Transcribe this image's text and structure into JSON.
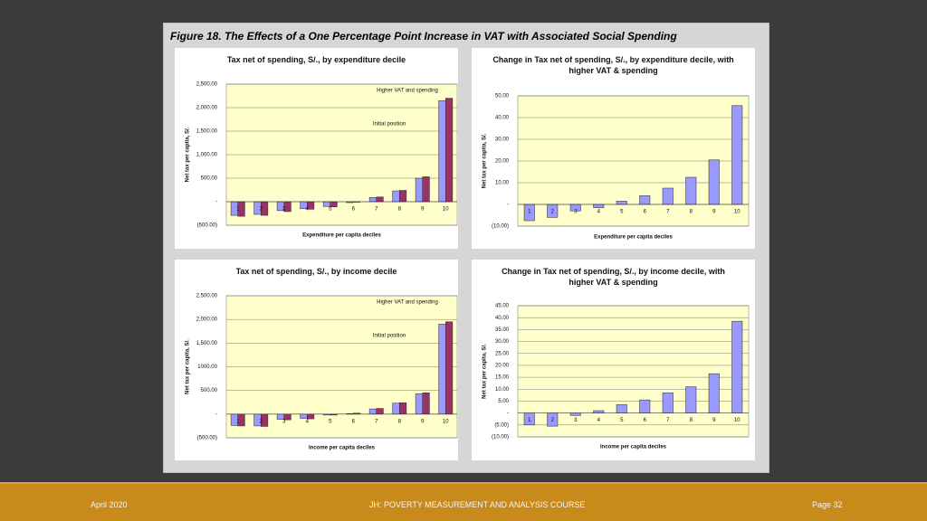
{
  "figure_title": "Figure 18.  The Effects of a One Percentage Point Increase in VAT with Associated Social Spending",
  "footer": {
    "date": "April 2020",
    "course": "JH: POVERTY MEASUREMENT AND ANALYSIS COURSE",
    "page": "Page 32"
  },
  "chart_data": [
    {
      "type": "bar",
      "title": "Tax net of spending, S/., by expenditure decile",
      "xlabel": "Expenditure per capita deciles",
      "ylabel": "Net tax per capita, S/.",
      "categories": [
        "1",
        "2",
        "3",
        "4",
        "5",
        "6",
        "7",
        "8",
        "9",
        "10"
      ],
      "series": [
        {
          "name": "Initial position",
          "color": "#9999ff",
          "values": [
            -290,
            -270,
            -190,
            -150,
            -100,
            -20,
            90,
            230,
            500,
            2150
          ]
        },
        {
          "name": "Higher VAT and spending",
          "color": "#993366",
          "values": [
            -310,
            -290,
            -210,
            -160,
            -110,
            -10,
            100,
            240,
            530,
            2200
          ]
        }
      ],
      "ylim": [
        -500,
        2500
      ],
      "yticks": [
        {
          "value": -500,
          "label": "(500.00)"
        },
        {
          "value": 0,
          "label": "-"
        },
        {
          "value": 500,
          "label": "500.00"
        },
        {
          "value": 1000,
          "label": "1,000.00"
        },
        {
          "value": 1500,
          "label": "1,500.00"
        },
        {
          "value": 2000,
          "label": "2,000.00"
        },
        {
          "value": 2500,
          "label": "2,500.00"
        }
      ],
      "grid": true
    },
    {
      "type": "bar",
      "title": "Change in Tax net of spending, S/., by expenditure decile, with higher VAT & spending",
      "xlabel": "Expenditure per capita deciles",
      "ylabel": "Net tax per capita, S/.",
      "categories": [
        "1",
        "2",
        "3",
        "4",
        "5",
        "6",
        "7",
        "8",
        "9",
        "10"
      ],
      "series": [
        {
          "color": "#9999ff",
          "values": [
            -7.5,
            -6,
            -3,
            -1.5,
            1.5,
            4,
            7.5,
            12.5,
            20.5,
            45.5
          ]
        }
      ],
      "ylim": [
        -10,
        50
      ],
      "yticks": [
        {
          "value": -10,
          "label": "(10.00)"
        },
        {
          "value": 0,
          "label": "-"
        },
        {
          "value": 10,
          "label": "10.00"
        },
        {
          "value": 20,
          "label": "20.00"
        },
        {
          "value": 30,
          "label": "30.00"
        },
        {
          "value": 40,
          "label": "40.00"
        },
        {
          "value": 50,
          "label": "50.00"
        }
      ],
      "grid": true
    },
    {
      "type": "bar",
      "title": "Tax net of spending, S/., by income decile",
      "xlabel": "Income per capita deciles",
      "ylabel": "Net tax per capita, S/.",
      "categories": [
        "1",
        "2",
        "3",
        "4",
        "5",
        "6",
        "7",
        "8",
        "9",
        "10"
      ],
      "series": [
        {
          "name": "Initial position",
          "color": "#9999ff",
          "values": [
            -240,
            -250,
            -110,
            -90,
            -20,
            10,
            110,
            230,
            430,
            1900
          ]
        },
        {
          "name": "Higher VAT and spending",
          "color": "#993366",
          "values": [
            -250,
            -260,
            -120,
            -100,
            -20,
            20,
            120,
            240,
            450,
            1950
          ]
        }
      ],
      "ylim": [
        -500,
        2500
      ],
      "yticks": [
        {
          "value": -500,
          "label": "(500.00)"
        },
        {
          "value": 0,
          "label": "-"
        },
        {
          "value": 500,
          "label": "500.00"
        },
        {
          "value": 1000,
          "label": "1000.00"
        },
        {
          "value": 1500,
          "label": "1,500.00"
        },
        {
          "value": 2000,
          "label": "2,000.00"
        },
        {
          "value": 2500,
          "label": "2,500.00"
        }
      ],
      "grid": true
    },
    {
      "type": "bar",
      "title": "Change in Tax net of spending, S/., by income decile, with higher VAT & spending",
      "xlabel": "Income per capita deciles",
      "ylabel": "Net tax per capita, S/.",
      "categories": [
        "1",
        "2",
        "3",
        "4",
        "5",
        "6",
        "7",
        "8",
        "9",
        "10"
      ],
      "series": [
        {
          "color": "#9999ff",
          "values": [
            -5,
            -5.5,
            -1,
            1,
            3.5,
            5.5,
            8.5,
            11,
            16.5,
            38.5
          ]
        }
      ],
      "ylim": [
        -10,
        45
      ],
      "yticks": [
        {
          "value": -10,
          "label": "(10.00)"
        },
        {
          "value": -5,
          "label": "(5.00)"
        },
        {
          "value": 0,
          "label": "-"
        },
        {
          "value": 5,
          "label": "5.00"
        },
        {
          "value": 10,
          "label": "10.00"
        },
        {
          "value": 15,
          "label": "15.00"
        },
        {
          "value": 20,
          "label": "20.00"
        },
        {
          "value": 25,
          "label": "25.00"
        },
        {
          "value": 30,
          "label": "30.00"
        },
        {
          "value": 35,
          "label": "35.00"
        },
        {
          "value": 40,
          "label": "40.00"
        },
        {
          "value": 45,
          "label": "45.00"
        }
      ],
      "grid": true
    }
  ]
}
